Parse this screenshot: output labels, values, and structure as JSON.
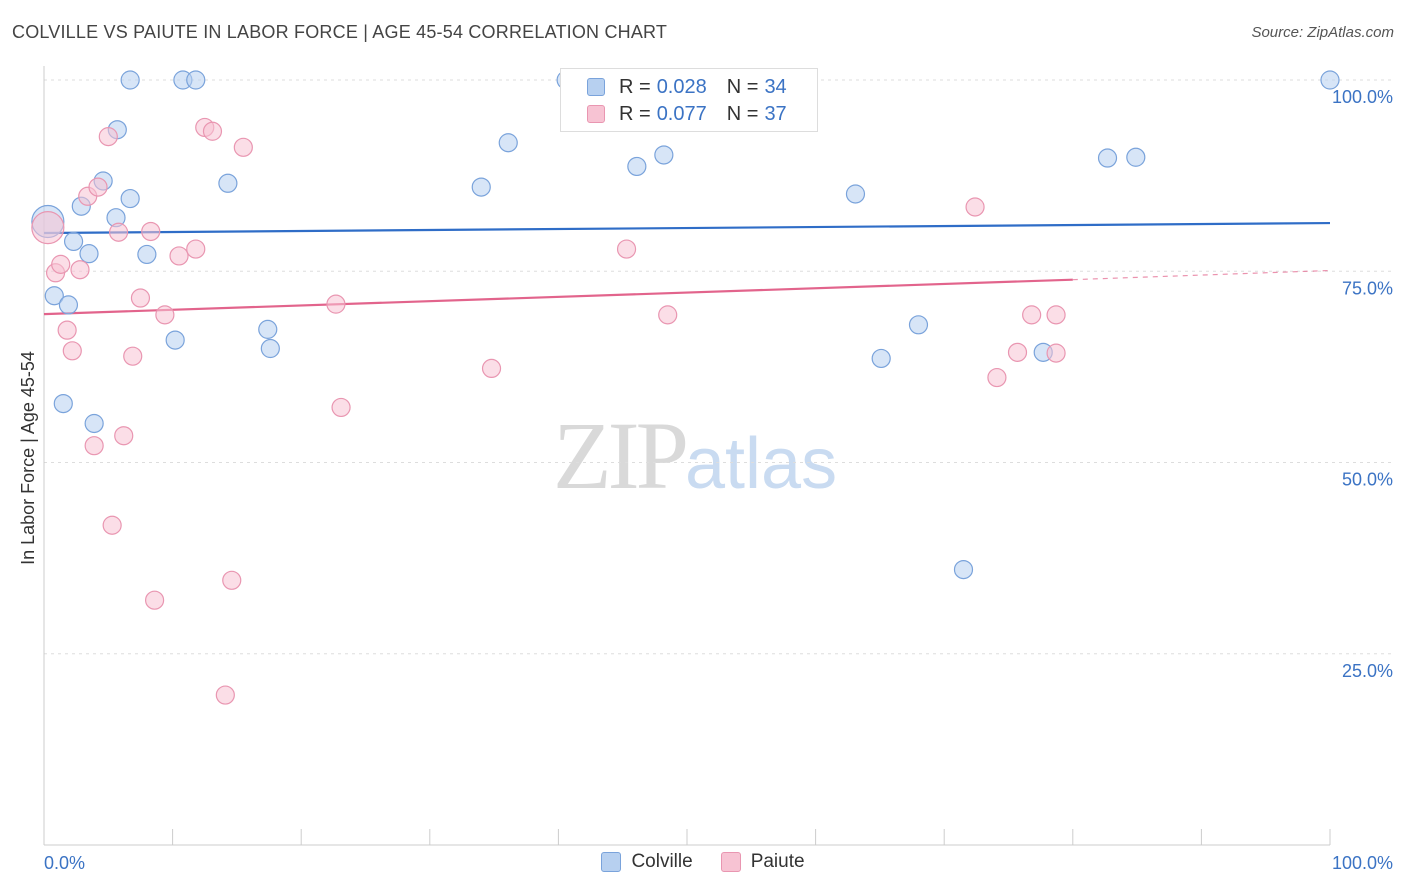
{
  "header": {
    "title": "COLVILLE VS PAIUTE IN LABOR FORCE | AGE 45-54 CORRELATION CHART",
    "source": "Source: ZipAtlas.com"
  },
  "watermark": {
    "zip": "ZIP",
    "atlas": "atlas"
  },
  "legend_top": {
    "rows": [
      {
        "r_label": "R =",
        "r_value": "0.028",
        "n_label": "N =",
        "n_value": "34"
      },
      {
        "r_label": "R =",
        "r_value": "0.077",
        "n_label": "N =",
        "n_value": "37"
      }
    ]
  },
  "legend_bottom": {
    "items": [
      "Colville",
      "Paiute"
    ]
  },
  "chart_data": {
    "type": "scatter",
    "title": "COLVILLE VS PAIUTE IN LABOR FORCE | AGE 45-54 CORRELATION CHART",
    "ylabel": "In Labor Force | Age 45-54",
    "xlabel": "",
    "xlim": [
      0,
      100
    ],
    "ylim": [
      0,
      100
    ],
    "x_tick_labels": [
      "0.0%",
      "100.0%"
    ],
    "y_tick_values": [
      25,
      50,
      75,
      100
    ],
    "y_tick_labels": [
      "25.0%",
      "50.0%",
      "75.0%",
      "100.0%"
    ],
    "grid": "horizontal dashed",
    "legend_position": "bottom-center",
    "colors": {
      "colville_fill": "#b7d0f0",
      "colville_stroke": "#7aa3db",
      "colville_line": "#2f6dc7",
      "paiute_fill": "#f7c3d3",
      "paiute_stroke": "#e996b1",
      "paiute_line": "#e2648c",
      "axis_label": "#3b73c4",
      "grid": "#dddddd"
    },
    "series": [
      {
        "name": "Colville",
        "r": 0.028,
        "n": 34,
        "trend": {
          "x": [
            0,
            100
          ],
          "y": [
            80.0,
            81.3
          ]
        },
        "points": [
          [
            0.3,
            81.5,
            16
          ],
          [
            0.8,
            71.8,
            9
          ],
          [
            1.5,
            57.7,
            9
          ],
          [
            1.9,
            70.6,
            9
          ],
          [
            2.3,
            78.9,
            9
          ],
          [
            2.9,
            83.5,
            9
          ],
          [
            3.5,
            77.3,
            9
          ],
          [
            3.9,
            55.1,
            9
          ],
          [
            4.6,
            86.8,
            9
          ],
          [
            5.6,
            82.0,
            9
          ],
          [
            5.7,
            93.5,
            9
          ],
          [
            6.7,
            100,
            9
          ],
          [
            6.7,
            84.5,
            9
          ],
          [
            8.0,
            77.2,
            9
          ],
          [
            10.2,
            66.0,
            9
          ],
          [
            10.8,
            100,
            9
          ],
          [
            11.8,
            100,
            9
          ],
          [
            14.3,
            86.5,
            9
          ],
          [
            17.4,
            67.4,
            9
          ],
          [
            17.6,
            64.9,
            9
          ],
          [
            34.0,
            86.0,
            9
          ],
          [
            36.1,
            91.8,
            9
          ],
          [
            40.6,
            100,
            9
          ],
          [
            42.7,
            100,
            9
          ],
          [
            46.1,
            88.7,
            9
          ],
          [
            48.2,
            90.2,
            9
          ],
          [
            63.1,
            85.1,
            9
          ],
          [
            65.1,
            63.6,
            9
          ],
          [
            68.0,
            68.0,
            9
          ],
          [
            71.5,
            36.0,
            9
          ],
          [
            77.7,
            64.4,
            9
          ],
          [
            82.7,
            89.8,
            9
          ],
          [
            84.9,
            89.9,
            9
          ],
          [
            100,
            100,
            9
          ]
        ]
      },
      {
        "name": "Paiute",
        "r": 0.077,
        "n": 37,
        "trend": {
          "x": [
            0,
            80,
            100
          ],
          "y": [
            69.4,
            73.9,
            75.1
          ],
          "solid_until": 80
        },
        "points": [
          [
            0.3,
            80.7,
            16
          ],
          [
            0.9,
            74.8,
            9
          ],
          [
            1.3,
            75.9,
            9
          ],
          [
            1.8,
            67.3,
            9
          ],
          [
            2.2,
            64.6,
            9
          ],
          [
            2.8,
            75.2,
            9
          ],
          [
            3.4,
            84.8,
            9
          ],
          [
            3.9,
            52.2,
            9
          ],
          [
            4.2,
            86.0,
            9
          ],
          [
            5.0,
            92.6,
            9
          ],
          [
            5.3,
            41.8,
            9
          ],
          [
            5.8,
            80.1,
            9
          ],
          [
            6.2,
            53.5,
            9
          ],
          [
            6.9,
            63.9,
            9
          ],
          [
            7.5,
            71.5,
            9
          ],
          [
            8.3,
            80.2,
            9
          ],
          [
            8.6,
            32.0,
            9
          ],
          [
            9.4,
            69.3,
            9
          ],
          [
            10.5,
            77.0,
            9
          ],
          [
            11.8,
            77.9,
            9
          ],
          [
            12.5,
            93.8,
            9
          ],
          [
            13.1,
            93.3,
            9
          ],
          [
            14.1,
            19.6,
            9
          ],
          [
            14.6,
            34.6,
            9
          ],
          [
            15.5,
            91.2,
            9
          ],
          [
            22.7,
            70.7,
            9
          ],
          [
            23.1,
            57.2,
            9
          ],
          [
            34.8,
            62.3,
            9
          ],
          [
            45.1,
            100,
            9
          ],
          [
            45.3,
            77.9,
            9
          ],
          [
            48.5,
            69.3,
            9
          ],
          [
            72.4,
            83.4,
            9
          ],
          [
            74.1,
            61.1,
            9
          ],
          [
            75.7,
            64.4,
            9
          ],
          [
            76.8,
            69.3,
            9
          ],
          [
            78.7,
            69.3,
            9
          ],
          [
            78.7,
            64.3,
            9
          ]
        ]
      }
    ]
  }
}
